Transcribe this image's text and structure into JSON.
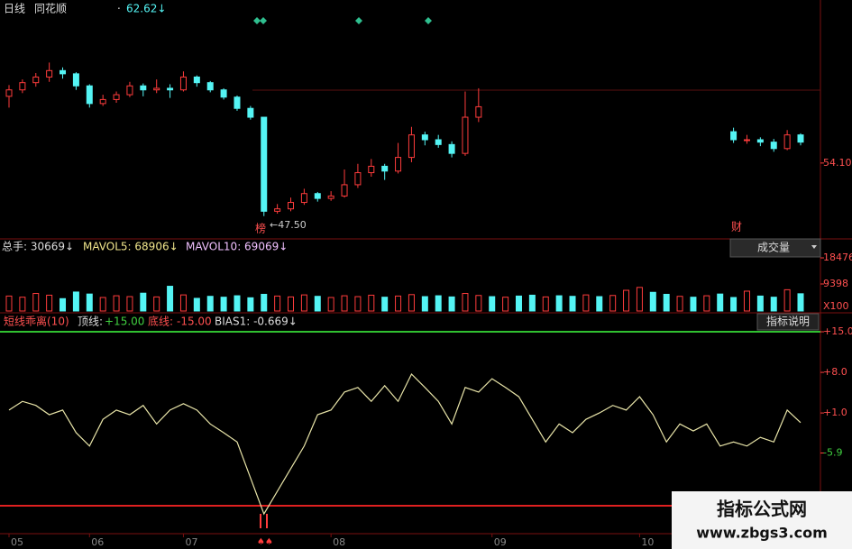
{
  "chart_data": [
    {
      "type": "candlestick",
      "header": [
        "日线",
        "同花顺"
      ],
      "last_price": "62.62↓",
      "up_color": "#ff3c3c",
      "down_color": "#54f4f4",
      "ylim": [
        45,
        72.7
      ],
      "yticks": [
        {
          "value": 54.1,
          "label": "54.10"
        }
      ],
      "min_label": "←47.50",
      "event_labels": [
        "榜",
        "财"
      ],
      "open": [
        62.4,
        63.2,
        64.1,
        64.8,
        65.6,
        65.2,
        63.7,
        61.5,
        62.0,
        62.6,
        63.7,
        63.2,
        63.4,
        63.2,
        64.8,
        64.1,
        63.2,
        62.3,
        60.9,
        59.8,
        48.1,
        48.4,
        49.2,
        50.3,
        49.7,
        50.0,
        51.4,
        52.9,
        53.7,
        53.1,
        54.8,
        57.6,
        57.0,
        56.4,
        55.3,
        59.8,
        null,
        null,
        null,
        null,
        null,
        null,
        null,
        null,
        null,
        null,
        null,
        null,
        null,
        null,
        null,
        null,
        null,
        null,
        58.0,
        57.0,
        57.0,
        56.7,
        55.9,
        57.6
      ],
      "close": [
        63.2,
        64.1,
        64.8,
        65.6,
        65.2,
        63.7,
        61.5,
        62.0,
        62.6,
        63.7,
        63.2,
        63.4,
        63.2,
        64.8,
        64.1,
        63.2,
        62.3,
        60.9,
        59.8,
        48.1,
        48.4,
        49.2,
        50.3,
        49.7,
        50.0,
        51.4,
        52.9,
        53.7,
        53.1,
        54.8,
        57.6,
        57.0,
        56.4,
        55.3,
        59.8,
        61.1,
        null,
        null,
        null,
        null,
        null,
        null,
        null,
        null,
        null,
        null,
        null,
        null,
        null,
        null,
        null,
        null,
        null,
        null,
        57.0,
        57.0,
        56.7,
        55.9,
        57.6,
        56.7
      ],
      "high": [
        63.8,
        64.5,
        65.3,
        66.6,
        66.0,
        65.4,
        63.9,
        62.6,
        63.0,
        64.2,
        64.0,
        64.5,
        63.9,
        65.5,
        65.0,
        64.3,
        63.4,
        62.5,
        61.2,
        59.8,
        49.0,
        49.8,
        50.9,
        50.5,
        50.6,
        53.3,
        54.0,
        54.6,
        54.0,
        56.6,
        58.6,
        58.0,
        57.6,
        56.8,
        63.0,
        63.4,
        null,
        null,
        null,
        null,
        null,
        null,
        null,
        null,
        null,
        null,
        null,
        null,
        null,
        null,
        null,
        null,
        null,
        null,
        58.5,
        57.6,
        57.3,
        57.1,
        58.2,
        57.8
      ],
      "low": [
        61.0,
        62.8,
        63.6,
        64.2,
        64.6,
        63.2,
        61.0,
        61.2,
        61.6,
        62.3,
        62.4,
        62.8,
        62.2,
        63.0,
        63.6,
        62.9,
        62.0,
        60.6,
        59.5,
        47.5,
        47.8,
        48.1,
        48.9,
        49.3,
        49.4,
        49.8,
        51.0,
        52.4,
        52.0,
        52.8,
        54.2,
        56.3,
        56.0,
        54.8,
        55.0,
        59.2,
        null,
        null,
        null,
        null,
        null,
        null,
        null,
        null,
        null,
        null,
        null,
        null,
        null,
        null,
        null,
        null,
        null,
        null,
        56.6,
        56.5,
        56.2,
        55.5,
        55.7,
        56.3
      ]
    },
    {
      "type": "bar",
      "header": [
        "总手: 30669↓",
        "MAVOL5: 68906↓",
        "MAVOL10: 69069↓"
      ],
      "selector": "成交量",
      "unit_label": "X100",
      "ylim": [
        0,
        23500
      ],
      "yticks": [
        9398,
        18476
      ],
      "values": [
        5200,
        4800,
        6100,
        5500,
        4300,
        6600,
        5900,
        4700,
        5300,
        5000,
        6200,
        4900,
        8600,
        5600,
        4400,
        5100,
        4800,
        5300,
        4600,
        5800,
        5200,
        4900,
        5600,
        5100,
        4700,
        5300,
        5000,
        5500,
        4800,
        5200,
        5700,
        5000,
        5300,
        4900,
        6100,
        5400,
        5000,
        4800,
        5200,
        5500,
        4900,
        5300,
        5100,
        5600,
        5000,
        5400,
        7200,
        8200,
        6500,
        5800,
        5100,
        4800,
        5300,
        5900,
        4700,
        6900,
        5200,
        4800,
        7400,
        6000
      ],
      "colors": [
        "#ff3c3c",
        "#ff3c3c",
        "#ff3c3c",
        "#ff3c3c",
        "#54f4f4",
        "#54f4f4",
        "#54f4f4",
        "#ff3c3c",
        "#ff3c3c",
        "#ff3c3c",
        "#54f4f4",
        "#ff3c3c",
        "#54f4f4",
        "#ff3c3c",
        "#54f4f4",
        "#54f4f4",
        "#54f4f4",
        "#54f4f4",
        "#54f4f4",
        "#54f4f4",
        "#ff3c3c",
        "#ff3c3c",
        "#ff3c3c",
        "#54f4f4",
        "#ff3c3c",
        "#ff3c3c",
        "#ff3c3c",
        "#ff3c3c",
        "#54f4f4",
        "#ff3c3c",
        "#ff3c3c",
        "#54f4f4",
        "#54f4f4",
        "#54f4f4",
        "#ff3c3c",
        "#ff3c3c",
        "#54f4f4",
        "#ff3c3c",
        "#54f4f4",
        "#54f4f4",
        "#ff3c3c",
        "#54f4f4",
        "#54f4f4",
        "#ff3c3c",
        "#54f4f4",
        "#ff3c3c",
        "#ff3c3c",
        "#ff3c3c",
        "#54f4f4",
        "#54f4f4",
        "#ff3c3c",
        "#54f4f4",
        "#ff3c3c",
        "#54f4f4",
        "#54f4f4",
        "#ff3c3c",
        "#54f4f4",
        "#54f4f4",
        "#ff3c3c",
        "#54f4f4"
      ]
    },
    {
      "type": "line",
      "header": [
        "短线乖离(10)",
        "顶线:",
        "底线:",
        "BIAS1: -0.669↓"
      ],
      "help_button": "指标说明",
      "color": "#e8e4a8",
      "top_line": {
        "value": 15,
        "label": "+15.00"
      },
      "bottom_line": {
        "value": -15,
        "label": "-15.00"
      },
      "ylim": [
        -19.5,
        17.8
      ],
      "yticks": [
        {
          "value": 15,
          "label": "+15.0"
        },
        {
          "value": 8,
          "label": "+8.0"
        },
        {
          "value": 1,
          "label": "+1.0"
        },
        -5.9
      ],
      "categories": [
        "05",
        null,
        null,
        null,
        null,
        null,
        "06",
        null,
        null,
        null,
        null,
        null,
        null,
        "07",
        null,
        null,
        null,
        null,
        null,
        null,
        null,
        null,
        null,
        null,
        "08",
        null,
        null,
        null,
        null,
        null,
        null,
        null,
        null,
        null,
        null,
        null,
        "09",
        null,
        null,
        null,
        null,
        null,
        null,
        null,
        null,
        null,
        null,
        "10",
        null,
        null,
        null,
        null,
        null,
        null,
        null,
        null,
        null,
        null,
        null,
        null
      ],
      "values": [
        1.5,
        3.0,
        2.3,
        0.7,
        1.5,
        -2.4,
        -4.7,
        -0.1,
        1.5,
        0.7,
        2.3,
        -0.9,
        1.5,
        2.6,
        1.5,
        -0.9,
        -2.4,
        -4.0,
        -10.2,
        -16.4,
        -12.5,
        -8.6,
        -4.7,
        0.7,
        1.5,
        4.6,
        5.4,
        3.0,
        5.7,
        3.0,
        7.7,
        5.4,
        3.0,
        -0.9,
        5.4,
        4.6,
        6.9,
        5.4,
        3.8,
        -0.1,
        -4.0,
        -0.9,
        -2.4,
        -0.1,
        1.0,
        2.3,
        1.5,
        3.8,
        0.7,
        -4.0,
        -0.9,
        -2.1,
        -0.9,
        -4.7,
        -4.0,
        -4.7,
        -3.2,
        -4.0,
        1.5,
        -0.669
      ]
    }
  ],
  "watermark": {
    "title": "指标公式网",
    "url": "www.zbgs3.com"
  }
}
